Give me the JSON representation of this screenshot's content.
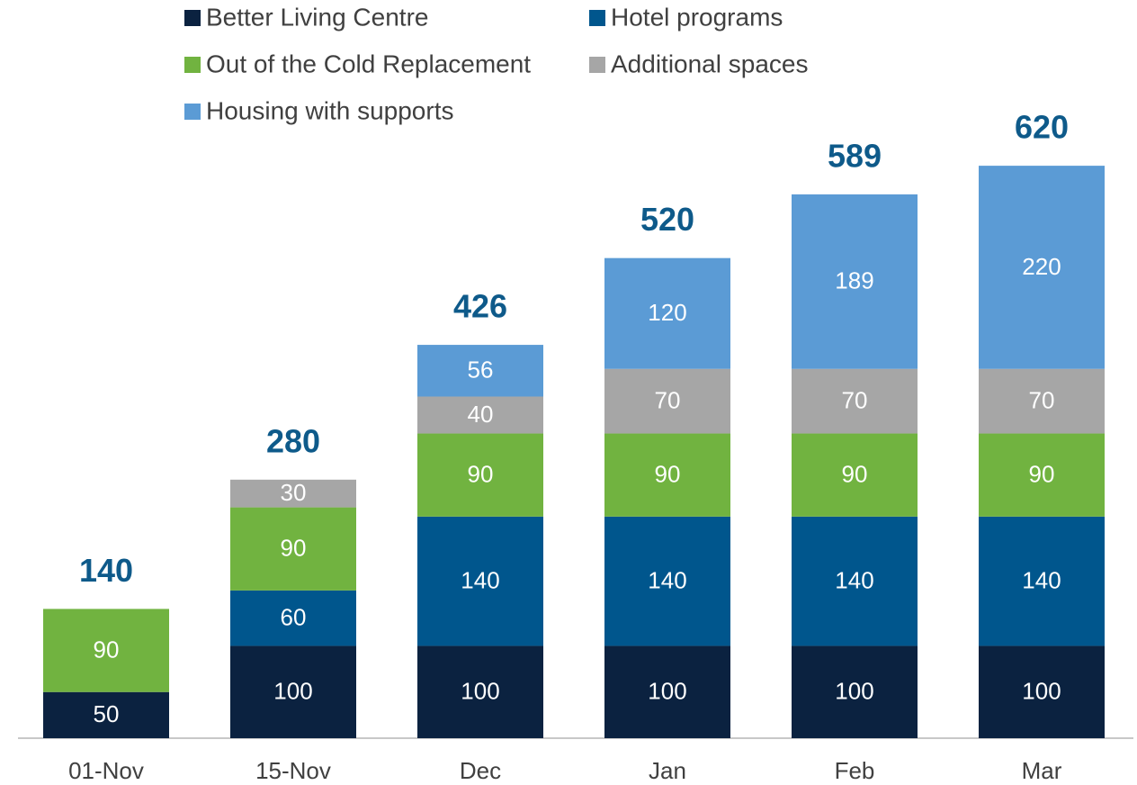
{
  "chart_data": {
    "type": "stacked-bar",
    "categories": [
      "01-Nov",
      "15-Nov",
      "Dec",
      "Jan",
      "Feb",
      "Mar"
    ],
    "series": [
      {
        "name": "Better Living Centre",
        "color": "#0b2240",
        "values": [
          50,
          100,
          100,
          100,
          100,
          100
        ]
      },
      {
        "name": "Hotel programs",
        "color": "#00568d",
        "values": [
          null,
          60,
          140,
          140,
          140,
          140
        ]
      },
      {
        "name": "Out of the Cold Replacement",
        "color": "#71b340",
        "values": [
          90,
          90,
          90,
          90,
          90,
          90
        ]
      },
      {
        "name": "Additional spaces",
        "color": "#a6a6a6",
        "values": [
          null,
          30,
          40,
          70,
          70,
          70
        ]
      },
      {
        "name": "Housing with supports",
        "color": "#5b9bd5",
        "values": [
          null,
          null,
          56,
          120,
          189,
          220
        ]
      }
    ],
    "totals": [
      140,
      280,
      426,
      520,
      589,
      620
    ],
    "ylim": [
      0,
      780
    ],
    "legend": "top"
  }
}
